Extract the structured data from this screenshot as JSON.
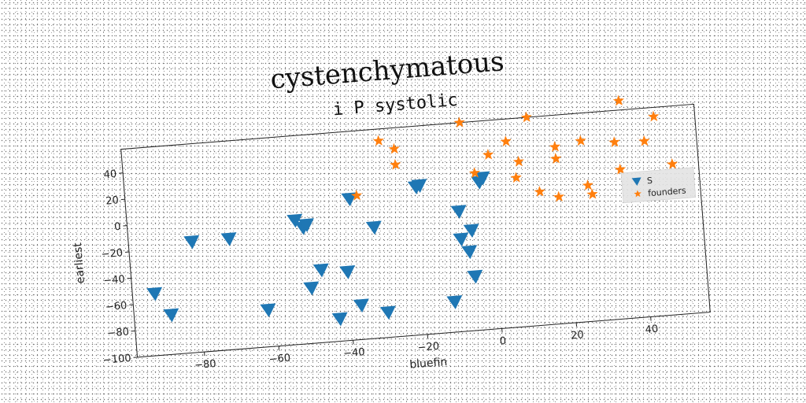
{
  "chart_data": {
    "type": "scatter",
    "title": "cystenchymatous",
    "subtitle": "i P systolic",
    "xlabel": "bluefin",
    "ylabel": "earliest",
    "xlim": [
      -98,
      56
    ],
    "ylim": [
      -100,
      58
    ],
    "xticks": [
      -80,
      -60,
      -40,
      -20,
      0,
      20,
      40
    ],
    "yticks": [
      -100,
      -80,
      -60,
      -40,
      -20,
      0,
      20,
      40
    ],
    "grid": false,
    "legend_position": "right",
    "series": [
      {
        "name": "S",
        "marker": "triangle-down",
        "color": "#1f77b4",
        "points": [
          [
            -92,
            -53
          ],
          [
            -88,
            -70
          ],
          [
            -81,
            -16
          ],
          [
            -71,
            -16
          ],
          [
            -62,
            -72
          ],
          [
            -53,
            -6
          ],
          [
            -51,
            -12
          ],
          [
            -50,
            -10
          ],
          [
            -50,
            -58
          ],
          [
            -47,
            -45
          ],
          [
            -43,
            -83
          ],
          [
            -40,
            -48
          ],
          [
            -38,
            7
          ],
          [
            -37,
            -74
          ],
          [
            -32,
            -16
          ],
          [
            -30,
            -81
          ],
          [
            -20,
            12
          ],
          [
            -19,
            13
          ],
          [
            -12,
            -77
          ],
          [
            -9,
            -9
          ],
          [
            -9,
            -30
          ],
          [
            -7,
            -40
          ],
          [
            -6,
            -24
          ],
          [
            -6,
            -59
          ],
          [
            -3,
            12
          ],
          [
            -2,
            15
          ]
        ]
      },
      {
        "name": "founders",
        "marker": "star",
        "color": "#ff7f0e",
        "points": [
          [
            -36,
            9
          ],
          [
            -29,
            49
          ],
          [
            -25,
            42
          ],
          [
            -25,
            30
          ],
          [
            -7,
            58
          ],
          [
            -4,
            19
          ],
          [
            0,
            32
          ],
          [
            5,
            41
          ],
          [
            7,
            13
          ],
          [
            8,
            25
          ],
          [
            11,
            58
          ],
          [
            13,
            1
          ],
          [
            18,
            34
          ],
          [
            18,
            25
          ],
          [
            18,
            -4
          ],
          [
            25,
            37
          ],
          [
            26,
            3
          ],
          [
            27,
            -4
          ],
          [
            34,
            34
          ],
          [
            35,
            13
          ],
          [
            36,
            65
          ],
          [
            42,
            33
          ],
          [
            45,
            51
          ],
          [
            49,
            14
          ]
        ]
      }
    ]
  }
}
